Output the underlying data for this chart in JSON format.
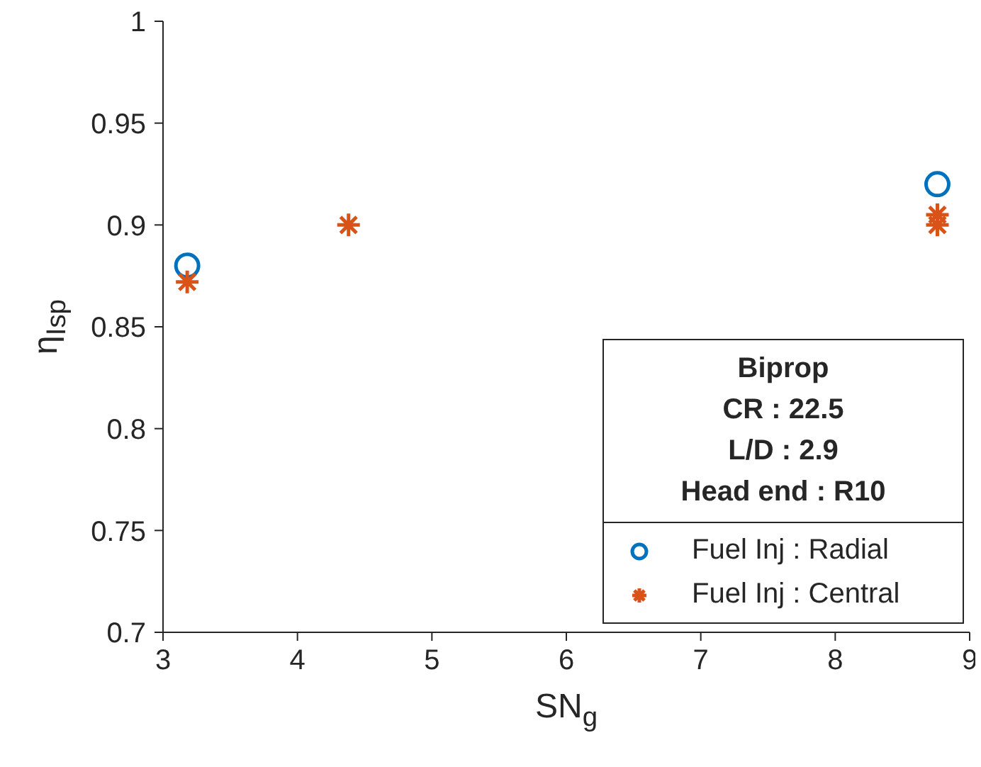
{
  "chart_data": {
    "type": "scatter",
    "xlabel": "SN$_{g}$",
    "ylabel": "η$_{Isp}$",
    "legend_title": "Biprop\nCR : 22.5\nL/D : 2.9\nHead end : R10",
    "xlim": [
      3,
      9
    ],
    "xticks": [
      3,
      4,
      5,
      6,
      7,
      8,
      9
    ],
    "ylim": [
      0.7,
      1
    ],
    "yticks": [
      0.7,
      0.75,
      0.8,
      0.85,
      0.9,
      0.95,
      1
    ],
    "grid": false,
    "legend": "bottom right",
    "series": [
      {
        "name": "Fuel Inj : Radial",
        "color": "#0072bd",
        "marker": "circle",
        "x": [
          3.18,
          8.76
        ],
        "values": [
          0.88,
          0.92
        ]
      },
      {
        "name": "Fuel Inj : Central",
        "color": "#d95319",
        "marker": "cross",
        "x": [
          3.18,
          4.38,
          8.76,
          8.76
        ],
        "values": [
          0.872,
          0.9,
          0.905,
          0.9
        ]
      }
    ]
  }
}
